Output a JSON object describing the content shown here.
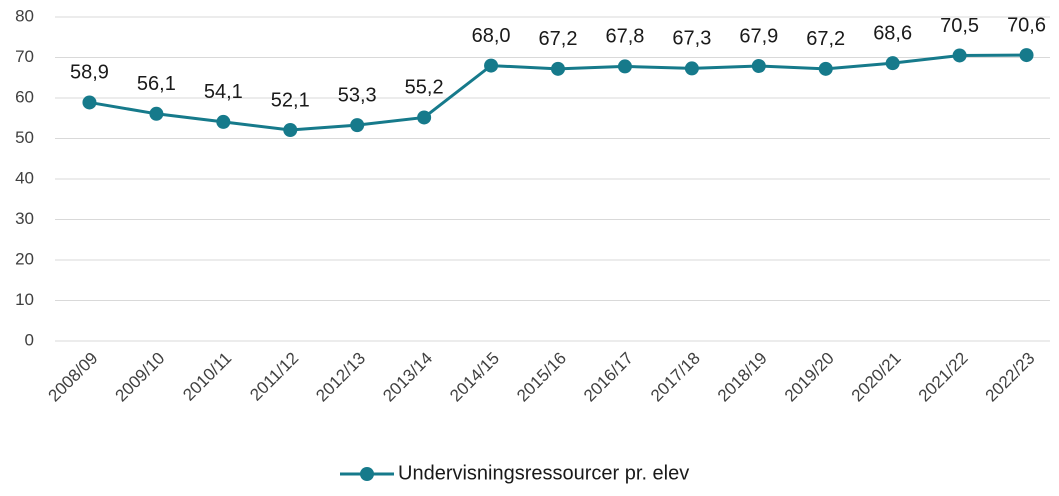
{
  "chart_data": {
    "type": "line",
    "categories": [
      "2008/09",
      "2009/10",
      "2010/11",
      "2011/12",
      "2012/13",
      "2013/14",
      "2014/15",
      "2015/16",
      "2016/17",
      "2017/18",
      "2018/19",
      "2019/20",
      "2020/21",
      "2021/22",
      "2022/23"
    ],
    "series": [
      {
        "name": "Undervisningsressourcer pr. elev",
        "color": "#167a8b",
        "values": [
          58.9,
          56.1,
          54.1,
          52.1,
          53.3,
          55.2,
          68.0,
          67.2,
          67.8,
          67.3,
          67.9,
          67.2,
          68.6,
          70.5,
          70.6
        ],
        "value_labels": [
          "58,9",
          "56,1",
          "54,1",
          "52,1",
          "53,3",
          "55,2",
          "68,0",
          "67,2",
          "67,8",
          "67,3",
          "67,9",
          "67,2",
          "68,6",
          "70,5",
          "70,6"
        ]
      }
    ],
    "ylim": [
      0,
      80
    ],
    "yticks": [
      0,
      10,
      20,
      30,
      40,
      50,
      60,
      70,
      80
    ],
    "grid": true,
    "legend": "bottom"
  }
}
